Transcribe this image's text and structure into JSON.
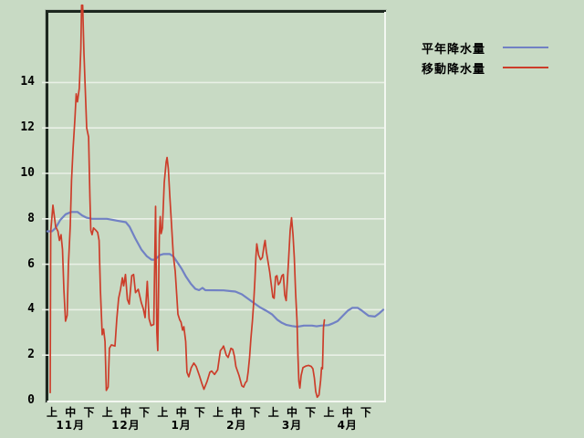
{
  "colors": {
    "background": "#c8dac4",
    "grid": "#e9f0e6",
    "frame_dark": "#1d271f",
    "frame_outer_light": "#b2c0af",
    "plot_border_light": "#f3f7f1",
    "blue_series": "#7181c4",
    "red_series": "#cc3d2a",
    "text": "#000000"
  },
  "legend": {
    "items": [
      {
        "key": "normal-precipitation",
        "label": "平年降水量",
        "color": "#7181c4"
      },
      {
        "key": "moving-precipitation",
        "label": "移動降水量",
        "color": "#cc3d2a"
      }
    ]
  },
  "y_axis": {
    "tick_labels": [
      "0",
      "2",
      "4",
      "6",
      "8",
      "10",
      "12",
      "14"
    ],
    "tick_values": [
      0,
      2,
      4,
      6,
      8,
      10,
      12,
      14
    ]
  },
  "x_axis": {
    "period_labels": [
      "上",
      "中",
      "下"
    ],
    "months": [
      "11月",
      "12月",
      "1月",
      "2月",
      "3月",
      "4月"
    ]
  },
  "chart_data": {
    "type": "line",
    "title": "",
    "xlabel": "",
    "ylabel": "",
    "ylim": [
      0,
      14
    ],
    "grid": true,
    "legend_position": "top-right-outside",
    "x_scale_note": "x = fractional index into categories; 0 = 11月上 tick, 17 = 4月下 tick",
    "categories": [
      "11月上",
      "11月中",
      "11月下",
      "12月上",
      "12月中",
      "12月下",
      "1月上",
      "1月中",
      "1月下",
      "2月上",
      "2月中",
      "2月下",
      "3月上",
      "3月中",
      "3月下",
      "4月上",
      "4月中",
      "4月下"
    ],
    "series": [
      {
        "key": "normal-precipitation",
        "name": "平年降水量",
        "color": "#7181c4",
        "points": [
          [
            -0.25,
            7.45
          ],
          [
            0,
            7.45
          ],
          [
            0.2,
            7.6
          ],
          [
            0.45,
            7.95
          ],
          [
            0.74,
            8.2
          ],
          [
            1.04,
            8.3
          ],
          [
            1.38,
            8.3
          ],
          [
            1.63,
            8.15
          ],
          [
            1.88,
            8.05
          ],
          [
            2.17,
            8.0
          ],
          [
            2.97,
            8.0
          ],
          [
            3.51,
            7.92
          ],
          [
            4.0,
            7.85
          ],
          [
            4.2,
            7.65
          ],
          [
            4.5,
            7.15
          ],
          [
            4.84,
            6.65
          ],
          [
            5.14,
            6.35
          ],
          [
            5.39,
            6.2
          ],
          [
            5.58,
            6.2
          ],
          [
            5.83,
            6.4
          ],
          [
            6.03,
            6.45
          ],
          [
            6.38,
            6.45
          ],
          [
            6.57,
            6.35
          ],
          [
            6.82,
            6.05
          ],
          [
            7.02,
            5.8
          ],
          [
            7.26,
            5.45
          ],
          [
            7.51,
            5.15
          ],
          [
            7.76,
            4.92
          ],
          [
            7.96,
            4.86
          ],
          [
            8.15,
            4.96
          ],
          [
            8.3,
            4.86
          ],
          [
            9.29,
            4.85
          ],
          [
            9.93,
            4.8
          ],
          [
            10.28,
            4.68
          ],
          [
            10.58,
            4.5
          ],
          [
            10.92,
            4.3
          ],
          [
            11.27,
            4.1
          ],
          [
            11.61,
            3.95
          ],
          [
            11.91,
            3.8
          ],
          [
            12.21,
            3.55
          ],
          [
            12.45,
            3.42
          ],
          [
            12.7,
            3.33
          ],
          [
            13.0,
            3.28
          ],
          [
            13.29,
            3.25
          ],
          [
            13.64,
            3.3
          ],
          [
            14.08,
            3.3
          ],
          [
            14.33,
            3.27
          ],
          [
            14.58,
            3.3
          ],
          [
            14.97,
            3.32
          ],
          [
            15.22,
            3.4
          ],
          [
            15.47,
            3.5
          ],
          [
            15.77,
            3.75
          ],
          [
            16.01,
            3.95
          ],
          [
            16.26,
            4.08
          ],
          [
            16.56,
            4.08
          ],
          [
            16.75,
            3.98
          ],
          [
            16.95,
            3.85
          ],
          [
            17.15,
            3.73
          ],
          [
            17.49,
            3.7
          ],
          [
            17.74,
            3.85
          ],
          [
            17.94,
            4.0
          ]
        ]
      },
      {
        "key": "moving-precipitation",
        "name": "移動降水量",
        "color": "#cc3d2a",
        "points": [
          [
            -0.1,
            0.35
          ],
          [
            -0.07,
            7.45
          ],
          [
            0.05,
            8.6
          ],
          [
            0.2,
            7.65
          ],
          [
            0.32,
            7.45
          ],
          [
            0.4,
            7.05
          ],
          [
            0.49,
            7.3
          ],
          [
            0.57,
            6.65
          ],
          [
            0.64,
            4.9
          ],
          [
            0.73,
            3.5
          ],
          [
            0.82,
            3.75
          ],
          [
            0.89,
            6.0
          ],
          [
            0.99,
            7.7
          ],
          [
            1.06,
            9.7
          ],
          [
            1.14,
            11.1
          ],
          [
            1.24,
            12.4
          ],
          [
            1.31,
            13.5
          ],
          [
            1.38,
            13.15
          ],
          [
            1.48,
            13.75
          ],
          [
            1.56,
            15.5
          ],
          [
            1.6,
            17.4
          ],
          [
            1.66,
            17.4
          ],
          [
            1.73,
            15.3
          ],
          [
            1.8,
            13.75
          ],
          [
            1.88,
            12.0
          ],
          [
            1.98,
            11.6
          ],
          [
            2.05,
            9.0
          ],
          [
            2.1,
            7.5
          ],
          [
            2.17,
            7.3
          ],
          [
            2.25,
            7.6
          ],
          [
            2.37,
            7.5
          ],
          [
            2.47,
            7.4
          ],
          [
            2.55,
            7.05
          ],
          [
            2.62,
            4.9
          ],
          [
            2.72,
            2.9
          ],
          [
            2.79,
            3.15
          ],
          [
            2.87,
            2.6
          ],
          [
            2.94,
            0.45
          ],
          [
            3.04,
            0.6
          ],
          [
            3.11,
            2.3
          ],
          [
            3.21,
            2.45
          ],
          [
            3.41,
            2.4
          ],
          [
            3.51,
            3.6
          ],
          [
            3.61,
            4.5
          ],
          [
            3.71,
            4.9
          ],
          [
            3.81,
            5.4
          ],
          [
            3.88,
            5.05
          ],
          [
            3.98,
            5.55
          ],
          [
            4.08,
            4.45
          ],
          [
            4.18,
            4.25
          ],
          [
            4.32,
            5.5
          ],
          [
            4.42,
            5.55
          ],
          [
            4.52,
            4.75
          ],
          [
            4.67,
            4.9
          ],
          [
            4.84,
            4.3
          ],
          [
            4.94,
            4.05
          ],
          [
            5.04,
            3.65
          ],
          [
            5.16,
            5.25
          ],
          [
            5.26,
            3.6
          ],
          [
            5.36,
            3.3
          ],
          [
            5.51,
            3.35
          ],
          [
            5.61,
            8.55
          ],
          [
            5.68,
            3.0
          ],
          [
            5.73,
            2.2
          ],
          [
            5.81,
            7.3
          ],
          [
            5.86,
            8.1
          ],
          [
            5.91,
            7.35
          ],
          [
            5.98,
            7.6
          ],
          [
            6.08,
            9.6
          ],
          [
            6.18,
            10.5
          ],
          [
            6.23,
            10.7
          ],
          [
            6.3,
            10.2
          ],
          [
            6.38,
            9.0
          ],
          [
            6.47,
            7.8
          ],
          [
            6.57,
            6.4
          ],
          [
            6.67,
            5.7
          ],
          [
            6.75,
            4.7
          ],
          [
            6.82,
            3.8
          ],
          [
            6.92,
            3.55
          ],
          [
            6.99,
            3.45
          ],
          [
            7.07,
            3.1
          ],
          [
            7.14,
            3.25
          ],
          [
            7.24,
            2.6
          ],
          [
            7.31,
            1.25
          ],
          [
            7.41,
            1.05
          ],
          [
            7.54,
            1.45
          ],
          [
            7.68,
            1.65
          ],
          [
            7.81,
            1.5
          ],
          [
            7.98,
            1.1
          ],
          [
            8.13,
            0.72
          ],
          [
            8.23,
            0.5
          ],
          [
            8.4,
            0.85
          ],
          [
            8.55,
            1.25
          ],
          [
            8.65,
            1.3
          ],
          [
            8.8,
            1.15
          ],
          [
            8.97,
            1.35
          ],
          [
            9.12,
            2.2
          ],
          [
            9.22,
            2.3
          ],
          [
            9.29,
            2.4
          ],
          [
            9.44,
            2.0
          ],
          [
            9.54,
            1.9
          ],
          [
            9.69,
            2.3
          ],
          [
            9.79,
            2.25
          ],
          [
            9.88,
            1.95
          ],
          [
            9.96,
            1.5
          ],
          [
            10.13,
            1.1
          ],
          [
            10.28,
            0.65
          ],
          [
            10.38,
            0.6
          ],
          [
            10.48,
            0.8
          ],
          [
            10.55,
            0.85
          ],
          [
            10.62,
            1.25
          ],
          [
            10.7,
            1.9
          ],
          [
            10.77,
            2.7
          ],
          [
            10.85,
            3.5
          ],
          [
            10.92,
            4.3
          ],
          [
            10.99,
            5.35
          ],
          [
            11.04,
            6.3
          ],
          [
            11.09,
            6.9
          ],
          [
            11.19,
            6.4
          ],
          [
            11.29,
            6.2
          ],
          [
            11.39,
            6.3
          ],
          [
            11.49,
            6.85
          ],
          [
            11.54,
            7.05
          ],
          [
            11.61,
            6.55
          ],
          [
            11.71,
            6.05
          ],
          [
            11.79,
            5.65
          ],
          [
            11.89,
            5.0
          ],
          [
            11.96,
            4.55
          ],
          [
            12.03,
            4.5
          ],
          [
            12.11,
            5.45
          ],
          [
            12.18,
            5.5
          ],
          [
            12.26,
            5.1
          ],
          [
            12.35,
            5.2
          ],
          [
            12.45,
            5.5
          ],
          [
            12.53,
            5.55
          ],
          [
            12.6,
            4.65
          ],
          [
            12.68,
            4.4
          ],
          [
            12.75,
            5.3
          ],
          [
            12.82,
            6.3
          ],
          [
            12.9,
            7.5
          ],
          [
            12.97,
            8.05
          ],
          [
            13.05,
            7.3
          ],
          [
            13.12,
            6.3
          ],
          [
            13.19,
            4.8
          ],
          [
            13.27,
            3.5
          ],
          [
            13.32,
            2.0
          ],
          [
            13.37,
            0.85
          ],
          [
            13.42,
            0.55
          ],
          [
            13.49,
            1.1
          ],
          [
            13.59,
            1.45
          ],
          [
            13.74,
            1.52
          ],
          [
            13.89,
            1.55
          ],
          [
            14.04,
            1.5
          ],
          [
            14.13,
            1.4
          ],
          [
            14.21,
            1.0
          ],
          [
            14.28,
            0.4
          ],
          [
            14.36,
            0.15
          ],
          [
            14.46,
            0.25
          ],
          [
            14.55,
            0.9
          ],
          [
            14.6,
            1.45
          ],
          [
            14.65,
            1.4
          ],
          [
            14.7,
            3.2
          ],
          [
            14.75,
            3.55
          ]
        ]
      }
    ]
  }
}
